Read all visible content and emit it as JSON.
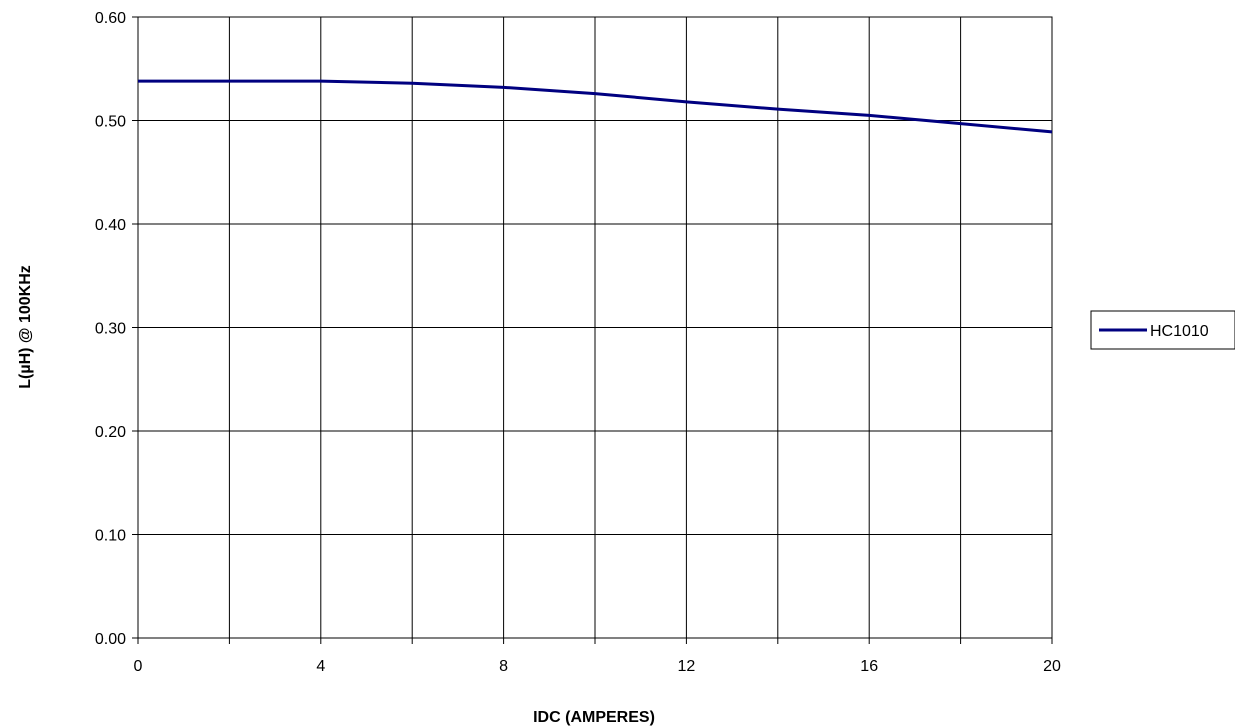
{
  "chart_data": {
    "type": "line",
    "title": "",
    "xlabel": "IDC (AMPERES)",
    "ylabel": "L(µH) @ 100KHz",
    "xlim": [
      0,
      20
    ],
    "ylim": [
      0,
      0.6
    ],
    "x_ticks": [
      0,
      4,
      8,
      12,
      16,
      20
    ],
    "x_tick_labels": [
      "0",
      "4",
      "8",
      "12",
      "16",
      "20"
    ],
    "y_ticks": [
      0,
      0.1,
      0.2,
      0.3,
      0.4,
      0.5,
      0.6
    ],
    "y_tick_labels": [
      "0.00",
      "0.10",
      "0.20",
      "0.30",
      "0.40",
      "0.50",
      "0.60"
    ],
    "grid": true,
    "legend_position": "right",
    "series": [
      {
        "name": "HC1010",
        "color": "#000080",
        "x": [
          0,
          2,
          4,
          6,
          8,
          10,
          12,
          14,
          16,
          18,
          20
        ],
        "y": [
          0.538,
          0.538,
          0.538,
          0.536,
          0.532,
          0.526,
          0.518,
          0.511,
          0.505,
          0.497,
          0.489
        ]
      }
    ]
  }
}
